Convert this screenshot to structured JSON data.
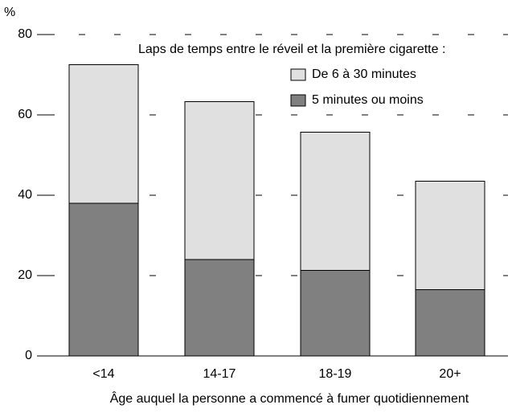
{
  "chart_data": {
    "type": "stacked_bar",
    "y_label": "%",
    "x_label": "Âge auquel la personne a commencé à fumer quotidiennement",
    "legend_title": "Laps de temps entre le réveil et la première cigarette :",
    "categories": [
      "<14",
      "14-17",
      "18-19",
      "20+"
    ],
    "series": [
      {
        "name": "5 minutes ou moins",
        "color": "#808080",
        "values": [
          38,
          24,
          21.3,
          16.5
        ]
      },
      {
        "name": "De 6 à 30 minutes",
        "color": "#e0e0e0",
        "values": [
          34.5,
          39.3,
          34.4,
          27
        ]
      }
    ],
    "ylim": [
      0,
      80
    ],
    "yticks": [
      0,
      20,
      40,
      60,
      80
    ],
    "grid": true
  }
}
